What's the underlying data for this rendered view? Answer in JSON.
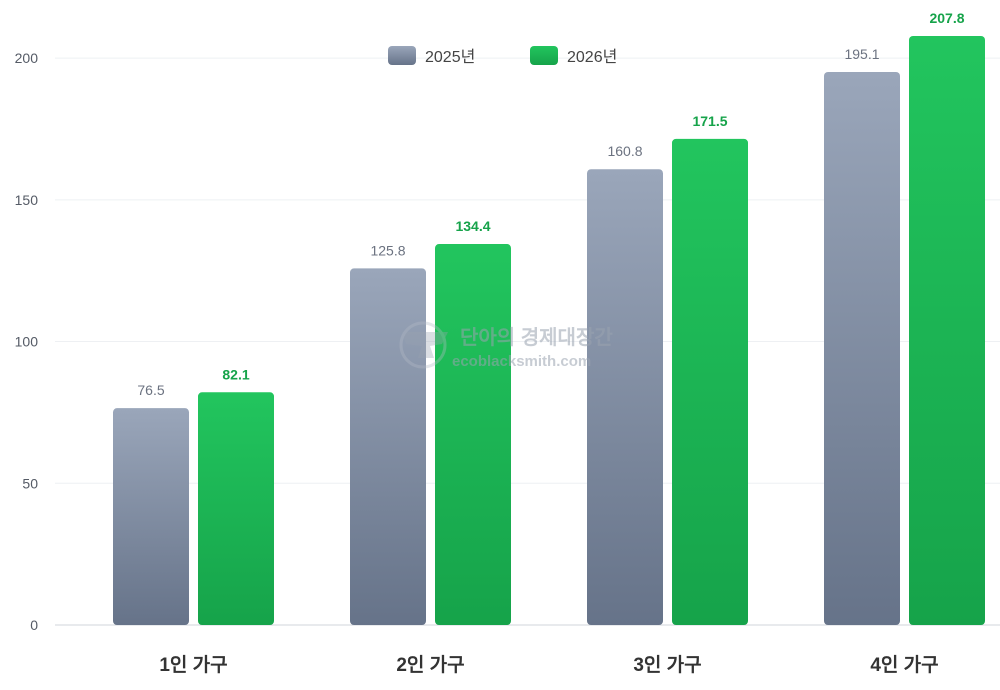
{
  "chart_data": {
    "type": "bar",
    "categories": [
      "1인 가구",
      "2인 가구",
      "3인 가구",
      "4인 가구"
    ],
    "series": [
      {
        "name": "2025년",
        "values": [
          76.5,
          125.8,
          160.8,
          195.1
        ],
        "color": "#7c879c"
      },
      {
        "name": "2026년",
        "values": [
          82.1,
          134.4,
          171.5,
          207.8
        ],
        "color": "#1fb954"
      }
    ],
    "yticks": [
      0,
      50,
      100,
      150,
      200
    ],
    "ylim": [
      0,
      220
    ],
    "grid": true,
    "legend": "top-center"
  },
  "watermark": {
    "title": "단아의 경제대장간",
    "url": "ecoblacksmith.com"
  }
}
